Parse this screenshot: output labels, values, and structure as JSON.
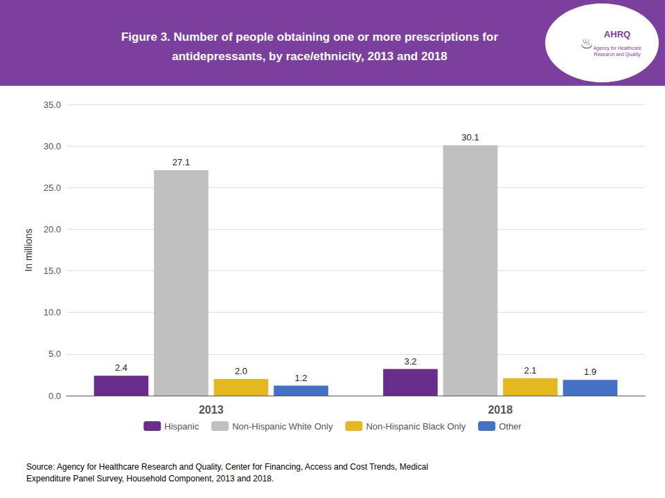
{
  "chart_data": {
    "type": "bar",
    "title": "Figure 3. Number of people obtaining one or more prescriptions for\nantidepressants, by race/ethnicity, 2013 and 2018",
    "categories": [
      "2013",
      "2018"
    ],
    "series": [
      {
        "name": "Hispanic",
        "color": "#6B2D8B",
        "values": [
          2.4,
          3.2
        ],
        "value_labels": [
          "2.4",
          "3.2"
        ]
      },
      {
        "name": "Non-Hispanic White Only",
        "color": "#C0C0C0",
        "values": [
          27.1,
          30.1
        ],
        "value_labels": [
          "27.1",
          "30.1"
        ]
      },
      {
        "name": "Non-Hispanic Black Only",
        "color": "#E6B820",
        "values": [
          2.0,
          2.1
        ],
        "value_labels": [
          "2.0",
          "2.1"
        ]
      },
      {
        "name": "Other",
        "color": "#4472C4",
        "values": [
          1.2,
          1.9
        ],
        "value_labels": [
          "1.2",
          "1.9"
        ]
      }
    ],
    "ylabel": "In millions",
    "ylim": [
      0,
      35
    ],
    "yticks": [
      {
        "value": 0,
        "label": "0.0"
      },
      {
        "value": 5,
        "label": "5.0"
      },
      {
        "value": 10,
        "label": "10.0"
      },
      {
        "value": 15,
        "label": "15.0"
      },
      {
        "value": 20,
        "label": "20.0"
      },
      {
        "value": 25,
        "label": "25.0"
      },
      {
        "value": 30,
        "label": "30.0"
      },
      {
        "value": 35,
        "label": "35.0"
      }
    ],
    "grid": true,
    "legend": "bottom",
    "data_labels": true,
    "annotations": [
      "♨",
      "AHRQ",
      "Agency for Healthcare\nResearch and Quality",
      "Source: Agency for Healthcare Research and Quality, Center for Financing, Access and Cost Trends, Medical\nExpenditure Panel Survey, Household Component, 2013 and 2018."
    ]
  }
}
